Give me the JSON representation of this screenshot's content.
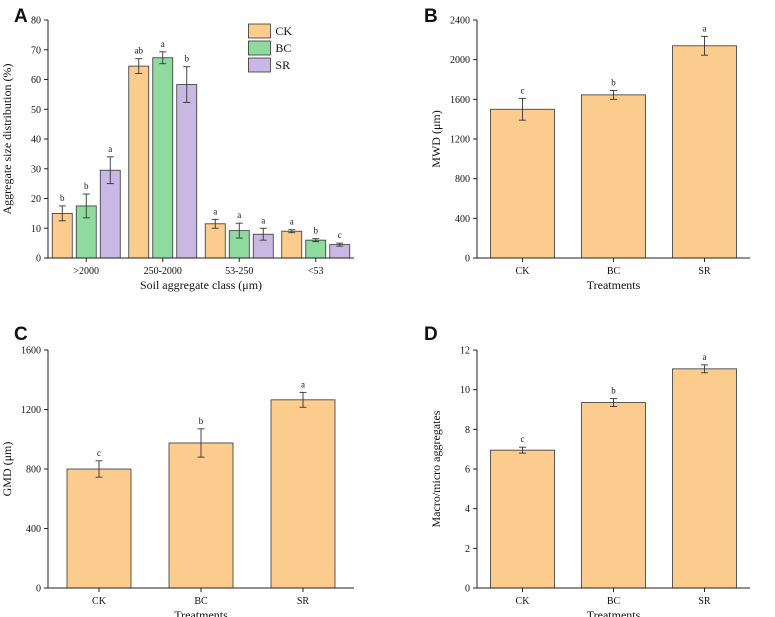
{
  "chart_data": [
    {
      "id": "A",
      "type": "bar",
      "panel_label": "A",
      "title": "",
      "xlabel": "Soil aggregate class (μm)",
      "ylabel": "Aggregate size distribution (%)",
      "ylim": [
        0,
        80
      ],
      "yticks": [
        "0",
        "10",
        "20",
        "30",
        "40",
        "50",
        "60",
        "70",
        "80"
      ],
      "categories": [
        ">2000",
        "250-2000",
        "53-250",
        "<53"
      ],
      "legend_position": "top-right",
      "series": [
        {
          "name": "CK",
          "color": "#FCCB8E",
          "values": [
            15.0,
            64.5,
            11.5,
            9.0
          ],
          "errors": [
            2.5,
            2.5,
            1.5,
            0.5
          ],
          "labels": [
            "b",
            "ab",
            "a",
            "a"
          ]
        },
        {
          "name": "BC",
          "color": "#8FDB9E",
          "values": [
            17.5,
            67.3,
            9.2,
            6.0
          ],
          "errors": [
            4.0,
            2.0,
            2.5,
            0.5
          ],
          "labels": [
            "b",
            "a",
            "a",
            "b"
          ]
        },
        {
          "name": "SR",
          "color": "#C9B8E3",
          "values": [
            29.5,
            58.3,
            8.0,
            4.5
          ],
          "errors": [
            4.5,
            6.0,
            2.0,
            0.5
          ],
          "labels": [
            "a",
            "b",
            "a",
            "c"
          ]
        }
      ]
    },
    {
      "id": "B",
      "type": "bar",
      "panel_label": "B",
      "title": "",
      "xlabel": "Treatments",
      "ylabel": "MWD (μm)",
      "ylim": [
        0,
        2400
      ],
      "yticks": [
        "0",
        "400",
        "800",
        "1200",
        "1600",
        "2000",
        "2400"
      ],
      "categories": [
        "CK",
        "BC",
        "SR"
      ],
      "color": "#FCCB8E",
      "values": [
        1500,
        1645,
        2140
      ],
      "errors": [
        110,
        45,
        95
      ],
      "labels": [
        "c",
        "b",
        "a"
      ]
    },
    {
      "id": "C",
      "type": "bar",
      "panel_label": "C",
      "title": "",
      "xlabel": "Treatments",
      "ylabel": "GMD (μm)",
      "ylim": [
        0,
        1600
      ],
      "yticks": [
        "0",
        "400",
        "800",
        "1200",
        "1600"
      ],
      "categories": [
        "CK",
        "BC",
        "SR"
      ],
      "color": "#FCCB8E",
      "values": [
        800,
        975,
        1265
      ],
      "errors": [
        55,
        95,
        50
      ],
      "labels": [
        "c",
        "b",
        "a"
      ]
    },
    {
      "id": "D",
      "type": "bar",
      "panel_label": "D",
      "title": "",
      "xlabel": "Treatments",
      "ylabel": "Macro/micro aggregates",
      "ylim": [
        0,
        12
      ],
      "yticks": [
        "0",
        "2",
        "4",
        "6",
        "8",
        "10",
        "12"
      ],
      "categories": [
        "CK",
        "BC",
        "SR"
      ],
      "color": "#FCCB8E",
      "values": [
        6.95,
        9.35,
        11.05
      ],
      "errors": [
        0.15,
        0.2,
        0.2
      ],
      "labels": [
        "c",
        "b",
        "a"
      ]
    }
  ]
}
